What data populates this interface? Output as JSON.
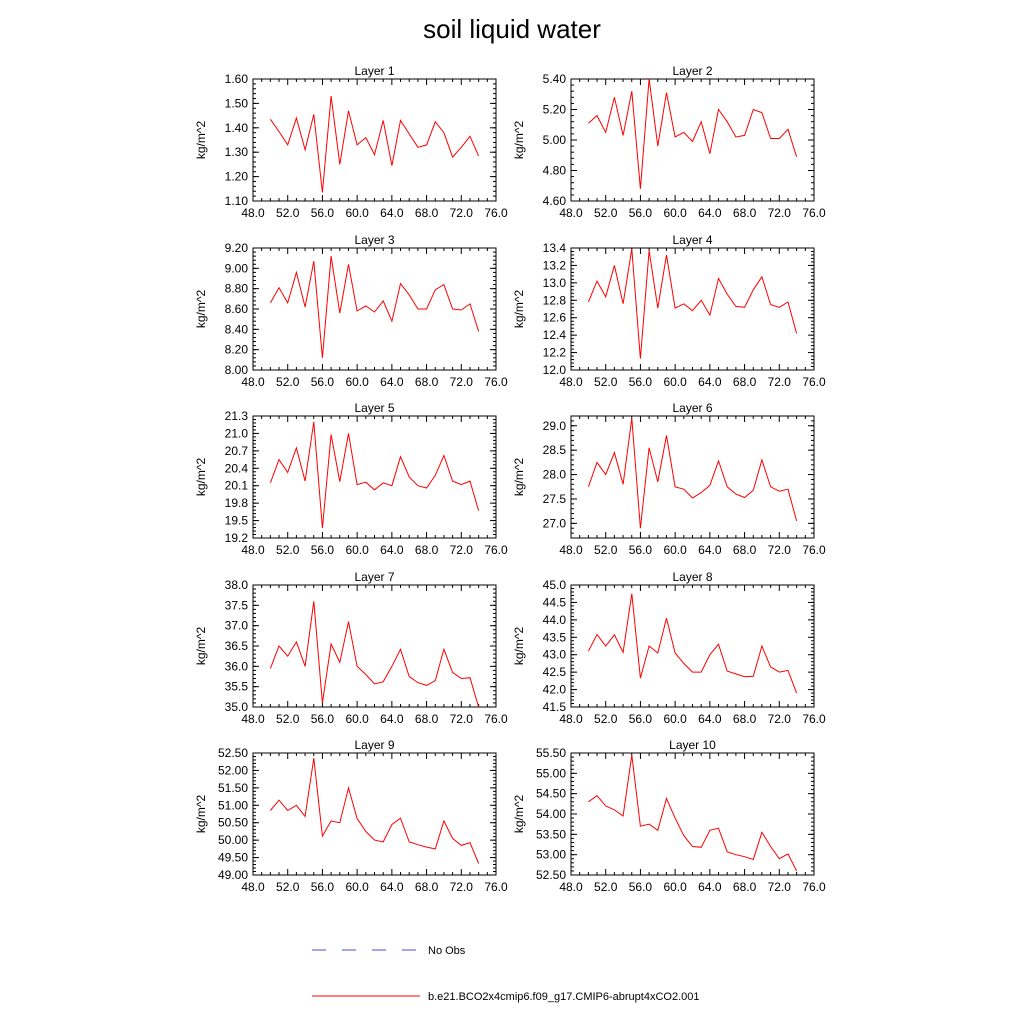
{
  "title": "soil liquid water",
  "legend": [
    {
      "label": "No Obs",
      "color": "#4a4ad0",
      "dash": true
    },
    {
      "label": "b.e21.BCO2x4cmip6.f09_g17.CMIP6-abrupt4xCO2.001",
      "color": "#ff0000",
      "dash": false
    }
  ],
  "chart_data": [
    {
      "type": "line",
      "title": "Layer 1",
      "ylabel": "kg/m^2",
      "xlim": [
        48,
        76
      ],
      "ylim": [
        1.1,
        1.6
      ],
      "xticks": [
        "48.0",
        "52.0",
        "56.0",
        "60.0",
        "64.0",
        "68.0",
        "72.0",
        "76.0"
      ],
      "yticks": [
        "1.10",
        "1.20",
        "1.30",
        "1.40",
        "1.50",
        "1.60"
      ],
      "series": [
        {
          "color": "#ff0000",
          "x": [
            50,
            51,
            52,
            53,
            54,
            55,
            56,
            57,
            58,
            59,
            60,
            61,
            62,
            63,
            64,
            65,
            66,
            67,
            68,
            69,
            70,
            71,
            72,
            73,
            74
          ],
          "values": [
            1.435,
            1.385,
            1.33,
            1.44,
            1.31,
            1.455,
            1.135,
            1.53,
            1.25,
            1.47,
            1.33,
            1.36,
            1.29,
            1.43,
            1.245,
            1.43,
            1.375,
            1.32,
            1.33,
            1.425,
            1.38,
            1.28,
            1.32,
            1.365,
            1.285
          ]
        }
      ]
    },
    {
      "type": "line",
      "title": "Layer 2",
      "ylabel": "kg/m^2",
      "xlim": [
        48,
        76
      ],
      "ylim": [
        4.6,
        5.4
      ],
      "xticks": [
        "48.0",
        "52.0",
        "56.0",
        "60.0",
        "64.0",
        "68.0",
        "72.0",
        "76.0"
      ],
      "yticks": [
        "4.60",
        "4.80",
        "5.00",
        "5.20",
        "5.40"
      ],
      "series": [
        {
          "color": "#ff0000",
          "x": [
            50,
            51,
            52,
            53,
            54,
            55,
            56,
            57,
            58,
            59,
            60,
            61,
            62,
            63,
            64,
            65,
            66,
            67,
            68,
            69,
            70,
            71,
            72,
            73,
            74
          ],
          "values": [
            5.11,
            5.16,
            5.05,
            5.28,
            5.03,
            5.32,
            4.68,
            5.4,
            4.96,
            5.31,
            5.02,
            5.05,
            4.99,
            5.12,
            4.91,
            5.2,
            5.12,
            5.02,
            5.03,
            5.2,
            5.18,
            5.01,
            5.01,
            5.07,
            4.89
          ]
        }
      ]
    },
    {
      "type": "line",
      "title": "Layer 3",
      "ylabel": "kg/m^2",
      "xlim": [
        48,
        76
      ],
      "ylim": [
        8.0,
        9.2
      ],
      "xticks": [
        "48.0",
        "52.0",
        "56.0",
        "60.0",
        "64.0",
        "68.0",
        "72.0",
        "76.0"
      ],
      "yticks": [
        "8.00",
        "8.20",
        "8.40",
        "8.60",
        "8.80",
        "9.00",
        "9.20"
      ],
      "series": [
        {
          "color": "#ff0000",
          "x": [
            50,
            51,
            52,
            53,
            54,
            55,
            56,
            57,
            58,
            59,
            60,
            61,
            62,
            63,
            64,
            65,
            66,
            67,
            68,
            69,
            70,
            71,
            72,
            73,
            74
          ],
          "values": [
            8.66,
            8.81,
            8.66,
            8.96,
            8.62,
            9.07,
            8.12,
            9.12,
            8.56,
            9.04,
            8.58,
            8.63,
            8.57,
            8.68,
            8.48,
            8.85,
            8.74,
            8.6,
            8.6,
            8.79,
            8.84,
            8.6,
            8.59,
            8.65,
            8.38
          ]
        }
      ]
    },
    {
      "type": "line",
      "title": "Layer 4",
      "ylabel": "kg/m^2",
      "xlim": [
        48,
        76
      ],
      "ylim": [
        12.0,
        13.4
      ],
      "xticks": [
        "48.0",
        "52.0",
        "56.0",
        "60.0",
        "64.0",
        "68.0",
        "72.0",
        "76.0"
      ],
      "yticks": [
        "12.0",
        "12.2",
        "12.4",
        "12.6",
        "12.8",
        "13.0",
        "13.2",
        "13.4"
      ],
      "series": [
        {
          "color": "#ff0000",
          "x": [
            50,
            51,
            52,
            53,
            54,
            55,
            56,
            57,
            58,
            59,
            60,
            61,
            62,
            63,
            64,
            65,
            66,
            67,
            68,
            69,
            70,
            71,
            72,
            73,
            74
          ],
          "values": [
            12.78,
            13.02,
            12.84,
            13.2,
            12.76,
            13.39,
            12.13,
            13.37,
            12.71,
            13.32,
            12.71,
            12.76,
            12.68,
            12.8,
            12.63,
            13.05,
            12.87,
            12.73,
            12.72,
            12.92,
            13.07,
            12.75,
            12.72,
            12.78,
            12.42
          ]
        }
      ]
    },
    {
      "type": "line",
      "title": "Layer 5",
      "ylabel": "kg/m^2",
      "xlim": [
        48,
        76
      ],
      "ylim": [
        19.2,
        21.3
      ],
      "xticks": [
        "48.0",
        "52.0",
        "56.0",
        "60.0",
        "64.0",
        "68.0",
        "72.0",
        "76.0"
      ],
      "yticks": [
        "19.2",
        "19.5",
        "19.8",
        "20.1",
        "20.4",
        "20.7",
        "21.0",
        "21.3"
      ],
      "series": [
        {
          "color": "#ff0000",
          "x": [
            50,
            51,
            52,
            53,
            54,
            55,
            56,
            57,
            58,
            59,
            60,
            61,
            62,
            63,
            64,
            65,
            66,
            67,
            68,
            69,
            70,
            71,
            72,
            73,
            74
          ],
          "values": [
            20.15,
            20.55,
            20.33,
            20.75,
            20.18,
            21.2,
            19.37,
            20.98,
            20.17,
            21.0,
            20.12,
            20.16,
            20.03,
            20.15,
            20.1,
            20.6,
            20.25,
            20.1,
            20.06,
            20.28,
            20.62,
            20.18,
            20.12,
            20.18,
            19.67
          ]
        }
      ]
    },
    {
      "type": "line",
      "title": "Layer 6",
      "ylabel": "kg/m^2",
      "xlim": [
        48,
        76
      ],
      "ylim": [
        26.7,
        29.2
      ],
      "xticks": [
        "48.0",
        "52.0",
        "56.0",
        "60.0",
        "64.0",
        "68.0",
        "72.0",
        "76.0"
      ],
      "yticks": [
        "27.0",
        "27.5",
        "28.0",
        "28.5",
        "29.0"
      ],
      "series": [
        {
          "color": "#ff0000",
          "x": [
            50,
            51,
            52,
            53,
            54,
            55,
            56,
            57,
            58,
            59,
            60,
            61,
            62,
            63,
            64,
            65,
            66,
            67,
            68,
            69,
            70,
            71,
            72,
            73,
            74
          ],
          "values": [
            27.75,
            28.25,
            28.0,
            28.45,
            27.8,
            29.15,
            26.9,
            28.55,
            27.85,
            28.8,
            27.75,
            27.7,
            27.52,
            27.63,
            27.78,
            28.28,
            27.75,
            27.6,
            27.53,
            27.68,
            28.3,
            27.75,
            27.66,
            27.7,
            27.05
          ]
        }
      ]
    },
    {
      "type": "line",
      "title": "Layer 7",
      "ylabel": "kg/m^2",
      "xlim": [
        48,
        76
      ],
      "ylim": [
        35.0,
        38.0
      ],
      "xticks": [
        "48.0",
        "52.0",
        "56.0",
        "60.0",
        "64.0",
        "68.0",
        "72.0",
        "76.0"
      ],
      "yticks": [
        "35.0",
        "35.5",
        "36.0",
        "36.5",
        "37.0",
        "37.5",
        "38.0"
      ],
      "series": [
        {
          "color": "#ff0000",
          "x": [
            50,
            51,
            52,
            53,
            54,
            55,
            56,
            57,
            58,
            59,
            60,
            61,
            62,
            63,
            64,
            65,
            66,
            67,
            68,
            69,
            70,
            71,
            72,
            73,
            74
          ],
          "values": [
            35.95,
            36.5,
            36.25,
            36.6,
            36.0,
            37.6,
            35.1,
            36.55,
            36.1,
            37.1,
            36.0,
            35.8,
            35.57,
            35.62,
            36.0,
            36.42,
            35.75,
            35.6,
            35.53,
            35.65,
            36.42,
            35.85,
            35.7,
            35.72,
            35.0
          ]
        }
      ]
    },
    {
      "type": "line",
      "title": "Layer 8",
      "ylabel": "kg/m^2",
      "xlim": [
        48,
        76
      ],
      "ylim": [
        41.5,
        45.0
      ],
      "xticks": [
        "48.0",
        "52.0",
        "56.0",
        "60.0",
        "64.0",
        "68.0",
        "72.0",
        "76.0"
      ],
      "yticks": [
        "41.5",
        "42.0",
        "42.5",
        "43.0",
        "43.5",
        "44.0",
        "44.5",
        "45.0"
      ],
      "series": [
        {
          "color": "#ff0000",
          "x": [
            50,
            51,
            52,
            53,
            54,
            55,
            56,
            57,
            58,
            59,
            60,
            61,
            62,
            63,
            64,
            65,
            66,
            67,
            68,
            69,
            70,
            71,
            72,
            73,
            74
          ],
          "values": [
            43.1,
            43.58,
            43.25,
            43.57,
            43.07,
            44.75,
            42.33,
            43.25,
            43.05,
            44.05,
            43.05,
            42.75,
            42.5,
            42.5,
            43.0,
            43.3,
            42.53,
            42.45,
            42.37,
            42.38,
            43.25,
            42.65,
            42.5,
            42.55,
            41.9
          ]
        }
      ]
    },
    {
      "type": "line",
      "title": "Layer 9",
      "ylabel": "kg/m^2",
      "xlim": [
        48,
        76
      ],
      "ylim": [
        49.0,
        52.5
      ],
      "xticks": [
        "48.0",
        "52.0",
        "56.0",
        "60.0",
        "64.0",
        "68.0",
        "72.0",
        "76.0"
      ],
      "yticks": [
        "49.00",
        "49.50",
        "50.00",
        "50.50",
        "51.00",
        "51.50",
        "52.00",
        "52.50"
      ],
      "series": [
        {
          "color": "#ff0000",
          "x": [
            50,
            51,
            52,
            53,
            54,
            55,
            56,
            57,
            58,
            59,
            60,
            61,
            62,
            63,
            64,
            65,
            66,
            67,
            68,
            69,
            70,
            71,
            72,
            73,
            74
          ],
          "values": [
            50.85,
            51.15,
            50.85,
            51.0,
            50.68,
            52.35,
            50.12,
            50.55,
            50.5,
            51.5,
            50.62,
            50.25,
            50.0,
            49.95,
            50.45,
            50.63,
            49.95,
            49.87,
            49.8,
            49.75,
            50.55,
            50.05,
            49.85,
            49.93,
            49.33
          ]
        }
      ]
    },
    {
      "type": "line",
      "title": "Layer 10",
      "ylabel": "kg/m^2",
      "xlim": [
        48,
        76
      ],
      "ylim": [
        52.5,
        55.5
      ],
      "xticks": [
        "48.0",
        "52.0",
        "56.0",
        "60.0",
        "64.0",
        "68.0",
        "72.0",
        "76.0"
      ],
      "yticks": [
        "52.50",
        "53.00",
        "53.50",
        "54.00",
        "54.50",
        "55.00",
        "55.50"
      ],
      "series": [
        {
          "color": "#ff0000",
          "x": [
            50,
            51,
            52,
            53,
            54,
            55,
            56,
            57,
            58,
            59,
            60,
            61,
            62,
            63,
            64,
            65,
            66,
            67,
            68,
            69,
            70,
            71,
            72,
            73,
            74
          ],
          "values": [
            54.3,
            54.45,
            54.2,
            54.1,
            53.95,
            55.45,
            53.7,
            53.75,
            53.6,
            54.38,
            53.9,
            53.47,
            53.2,
            53.18,
            53.6,
            53.65,
            53.07,
            53.0,
            52.95,
            52.88,
            53.55,
            53.2,
            52.9,
            53.02,
            52.6
          ]
        }
      ]
    }
  ]
}
